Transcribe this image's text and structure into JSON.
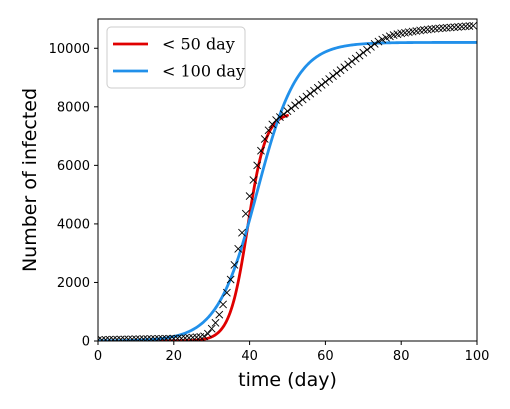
{
  "chart_data": {
    "type": "line",
    "xlabel": "time (day)",
    "ylabel": "Number of infected",
    "xlim": [
      0,
      100
    ],
    "ylim": [
      0,
      11000
    ],
    "xticks": [
      0,
      20,
      40,
      60,
      80,
      100
    ],
    "yticks": [
      0,
      2000,
      4000,
      6000,
      8000,
      10000
    ],
    "grid": false,
    "legend_position": "top-left",
    "observed": {
      "marker": "x",
      "color": "#000000",
      "x": [
        0,
        1,
        2,
        3,
        4,
        5,
        6,
        7,
        8,
        9,
        10,
        11,
        12,
        13,
        14,
        15,
        16,
        17,
        18,
        19,
        20,
        21,
        22,
        23,
        24,
        25,
        26,
        27,
        28,
        29,
        30,
        31,
        32,
        33,
        34,
        35,
        36,
        37,
        38,
        39,
        40,
        41,
        42,
        43,
        44,
        45,
        46,
        47,
        48,
        49,
        50,
        51,
        52,
        53,
        54,
        55,
        56,
        57,
        58,
        59,
        60,
        61,
        62,
        63,
        64,
        65,
        66,
        67,
        68,
        69,
        70,
        71,
        72,
        73,
        74,
        75,
        76,
        77,
        78,
        79,
        80,
        81,
        82,
        83,
        84,
        85,
        86,
        87,
        88,
        89,
        90,
        91,
        92,
        93,
        94,
        95,
        96,
        97,
        98,
        99
      ],
      "y": [
        30,
        35,
        40,
        45,
        48,
        50,
        52,
        55,
        57,
        60,
        62,
        64,
        66,
        68,
        70,
        72,
        74,
        76,
        78,
        80,
        82,
        85,
        90,
        100,
        110,
        120,
        130,
        140,
        160,
        250,
        420,
        620,
        900,
        1250,
        1650,
        2100,
        2600,
        3150,
        3700,
        4350,
        4950,
        5500,
        6000,
        6500,
        6900,
        7200,
        7400,
        7550,
        7650,
        7750,
        7850,
        7950,
        8050,
        8150,
        8250,
        8350,
        8450,
        8550,
        8650,
        8750,
        8850,
        8950,
        9050,
        9150,
        9250,
        9350,
        9450,
        9550,
        9650,
        9750,
        9850,
        9950,
        10050,
        10150,
        10230,
        10300,
        10360,
        10410,
        10450,
        10480,
        10510,
        10530,
        10550,
        10570,
        10590,
        10610,
        10625,
        10640,
        10655,
        10670,
        10680,
        10690,
        10700,
        10710,
        10720,
        10730,
        10740,
        10750,
        10760,
        10770
      ]
    },
    "series": [
      {
        "name": "< 50 day",
        "color": "#e00000",
        "x_range": [
          0,
          50
        ],
        "model": "logistic",
        "params": {
          "K": 7800,
          "t0": 39.5,
          "r": 0.42
        }
      },
      {
        "name": "< 100 day",
        "color": "#2190ea",
        "x_range": [
          0,
          100
        ],
        "model": "logistic",
        "params": {
          "K": 10200,
          "t0": 42,
          "r": 0.19
        }
      }
    ]
  }
}
